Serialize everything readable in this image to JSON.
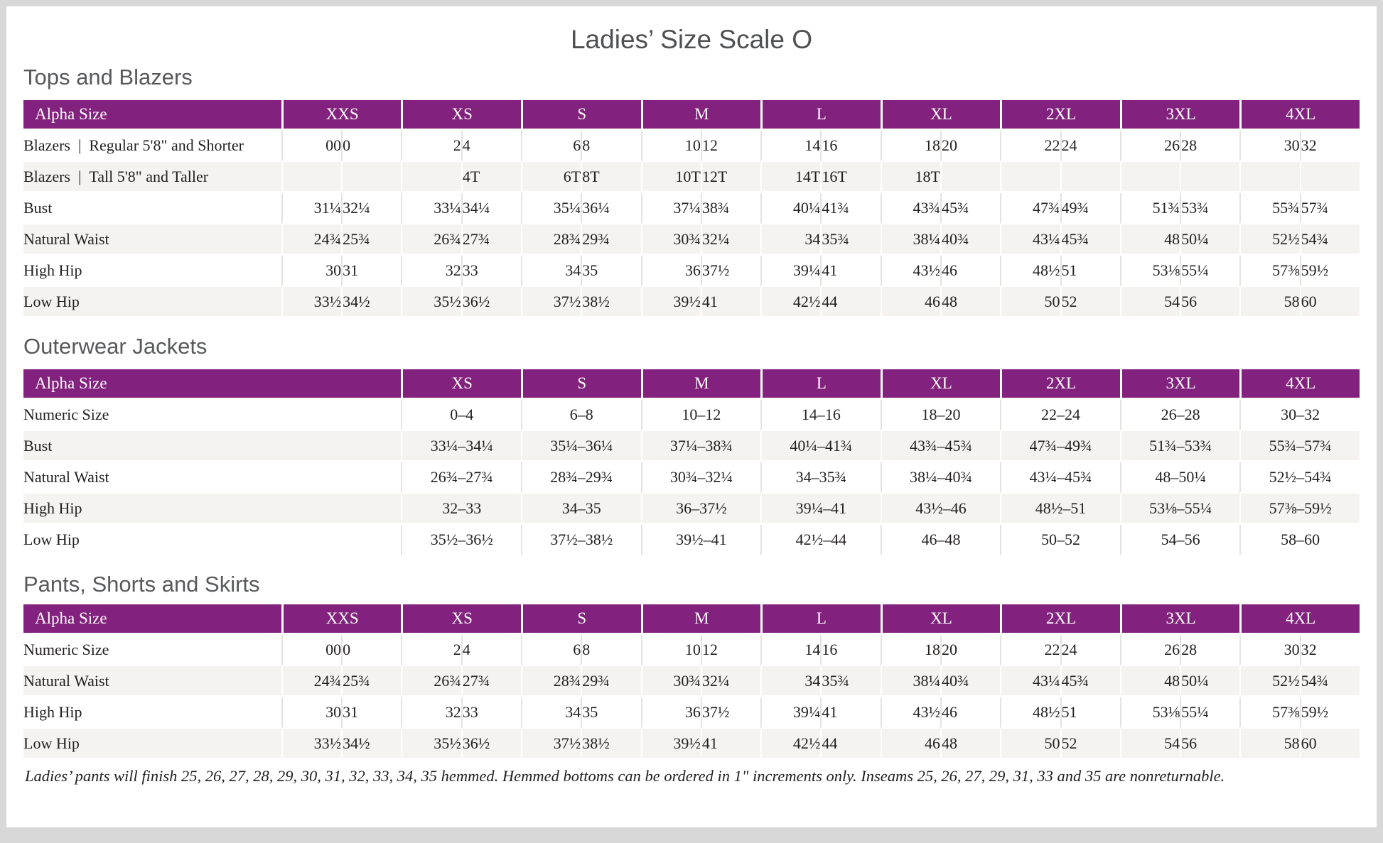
{
  "page": {
    "title": "Ladies’ Size Scale O",
    "footnote": "Ladies’ pants will finish 25, 26, 27, 28, 29, 30, 31, 32, 33, 34, 35 hemmed. Hemmed bottoms can be ordered in 1\" increments only. Inseams 25, 26, 27, 29, 31, 33 and 35 are nonreturnable."
  },
  "colors": {
    "header_purple": "#83217E",
    "stripe": "#F4F3F0",
    "divider": "#E5E3E0",
    "frame": "#D8D8D8",
    "heading_gray": "#58595B",
    "text_dark": "#221F1F"
  },
  "tables": [
    {
      "id": "tops-and-blazers",
      "heading": "Tops and Blazers",
      "header_label": "Alpha Size",
      "split": true,
      "sizes": [
        "XXS",
        "XS",
        "S",
        "M",
        "L",
        "XL",
        "2XL",
        "3XL",
        "4XL"
      ],
      "rows": [
        {
          "label": "Blazers | Regular 5'8\" and Shorter",
          "values": [
            [
              "00",
              "0"
            ],
            [
              "2",
              "4"
            ],
            [
              "6",
              "8"
            ],
            [
              "10",
              "12"
            ],
            [
              "14",
              "16"
            ],
            [
              "18",
              "20"
            ],
            [
              "22",
              "24"
            ],
            [
              "26",
              "28"
            ],
            [
              "30",
              "32"
            ]
          ]
        },
        {
          "label": "Blazers | Tall 5'8\" and Taller",
          "values": [
            [
              "",
              ""
            ],
            [
              "",
              "4T"
            ],
            [
              "6T",
              "8T"
            ],
            [
              "10T",
              "12T"
            ],
            [
              "14T",
              "16T"
            ],
            [
              "18T",
              ""
            ],
            [
              "",
              ""
            ],
            [
              "",
              ""
            ],
            [
              "",
              ""
            ]
          ]
        },
        {
          "label": "Bust",
          "values": [
            [
              "31¼",
              "32¼"
            ],
            [
              "33¼",
              "34¼"
            ],
            [
              "35¼",
              "36¼"
            ],
            [
              "37¼",
              "38¾"
            ],
            [
              "40¼",
              "41¾"
            ],
            [
              "43¾",
              "45¾"
            ],
            [
              "47¾",
              "49¾"
            ],
            [
              "51¾",
              "53¾"
            ],
            [
              "55¾",
              "57¾"
            ]
          ]
        },
        {
          "label": "Natural Waist",
          "values": [
            [
              "24¾",
              "25¾"
            ],
            [
              "26¾",
              "27¾"
            ],
            [
              "28¾",
              "29¾"
            ],
            [
              "30¾",
              "32¼"
            ],
            [
              "34",
              "35¾"
            ],
            [
              "38¼",
              "40¾"
            ],
            [
              "43¼",
              "45¾"
            ],
            [
              "48",
              "50¼"
            ],
            [
              "52½",
              "54¾"
            ]
          ]
        },
        {
          "label": "High Hip",
          "values": [
            [
              "30",
              "31"
            ],
            [
              "32",
              "33"
            ],
            [
              "34",
              "35"
            ],
            [
              "36",
              "37½"
            ],
            [
              "39¼",
              "41"
            ],
            [
              "43½",
              "46"
            ],
            [
              "48½",
              "51"
            ],
            [
              "53⅛",
              "55¼"
            ],
            [
              "57⅜",
              "59½"
            ]
          ]
        },
        {
          "label": "Low Hip",
          "values": [
            [
              "33½",
              "34½"
            ],
            [
              "35½",
              "36½"
            ],
            [
              "37½",
              "38½"
            ],
            [
              "39½",
              "41"
            ],
            [
              "42½",
              "44"
            ],
            [
              "46",
              "48"
            ],
            [
              "50",
              "52"
            ],
            [
              "54",
              "56"
            ],
            [
              "58",
              "60"
            ]
          ]
        }
      ]
    },
    {
      "id": "outerwear-jackets",
      "heading": "Outerwear Jackets",
      "header_label": "Alpha Size",
      "split": false,
      "sizes": [
        "XS",
        "S",
        "M",
        "L",
        "XL",
        "2XL",
        "3XL",
        "4XL"
      ],
      "rows": [
        {
          "label": "Numeric Size",
          "values": [
            "0–4",
            "6–8",
            "10–12",
            "14–16",
            "18–20",
            "22–24",
            "26–28",
            "30–32"
          ]
        },
        {
          "label": "Bust",
          "values": [
            "33¼–34¼",
            "35¼–36¼",
            "37¼–38¾",
            "40¼–41¾",
            "43¾–45¾",
            "47¾–49¾",
            "51¾–53¾",
            "55¾–57¾"
          ]
        },
        {
          "label": "Natural Waist",
          "values": [
            "26¾–27¾",
            "28¾–29¾",
            "30¾–32¼",
            "34–35¾",
            "38¼–40¾",
            "43¼–45¾",
            "48–50¼",
            "52½–54¾"
          ]
        },
        {
          "label": "High Hip",
          "values": [
            "32–33",
            "34–35",
            "36–37½",
            "39¼–41",
            "43½–46",
            "48½–51",
            "53⅛–55¼",
            "57⅜–59½"
          ]
        },
        {
          "label": "Low Hip",
          "values": [
            "35½–36½",
            "37½–38½",
            "39½–41",
            "42½–44",
            "46–48",
            "50–52",
            "54–56",
            "58–60"
          ]
        }
      ]
    },
    {
      "id": "pants-shorts-skirts",
      "heading": "Pants, Shorts and Skirts",
      "header_label": "Alpha Size",
      "split": true,
      "sizes": [
        "XXS",
        "XS",
        "S",
        "M",
        "L",
        "XL",
        "2XL",
        "3XL",
        "4XL"
      ],
      "rows": [
        {
          "label": "Numeric Size",
          "values": [
            [
              "00",
              "0"
            ],
            [
              "2",
              "4"
            ],
            [
              "6",
              "8"
            ],
            [
              "10",
              "12"
            ],
            [
              "14",
              "16"
            ],
            [
              "18",
              "20"
            ],
            [
              "22",
              "24"
            ],
            [
              "26",
              "28"
            ],
            [
              "30",
              "32"
            ]
          ]
        },
        {
          "label": "Natural Waist",
          "values": [
            [
              "24¾",
              "25¾"
            ],
            [
              "26¾",
              "27¾"
            ],
            [
              "28¾",
              "29¾"
            ],
            [
              "30¾",
              "32¼"
            ],
            [
              "34",
              "35¾"
            ],
            [
              "38¼",
              "40¾"
            ],
            [
              "43¼",
              "45¾"
            ],
            [
              "48",
              "50¼"
            ],
            [
              "52½",
              "54¾"
            ]
          ]
        },
        {
          "label": "High Hip",
          "values": [
            [
              "30",
              "31"
            ],
            [
              "32",
              "33"
            ],
            [
              "34",
              "35"
            ],
            [
              "36",
              "37½"
            ],
            [
              "39¼",
              "41"
            ],
            [
              "43½",
              "46"
            ],
            [
              "48½",
              "51"
            ],
            [
              "53⅛",
              "55¼"
            ],
            [
              "57⅜",
              "59½"
            ]
          ]
        },
        {
          "label": "Low Hip",
          "values": [
            [
              "33½",
              "34½"
            ],
            [
              "35½",
              "36½"
            ],
            [
              "37½",
              "38½"
            ],
            [
              "39½",
              "41"
            ],
            [
              "42½",
              "44"
            ],
            [
              "46",
              "48"
            ],
            [
              "50",
              "52"
            ],
            [
              "54",
              "56"
            ],
            [
              "58",
              "60"
            ]
          ]
        }
      ]
    }
  ]
}
